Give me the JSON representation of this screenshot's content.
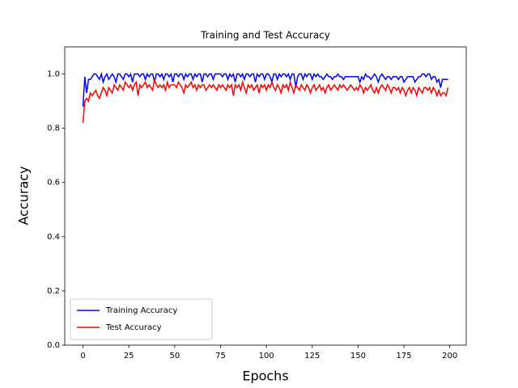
{
  "chart_data": {
    "type": "line",
    "title": "Training and Test Accuracy",
    "xlabel": "Epochs",
    "ylabel": "Accuracy",
    "x": [
      0,
      1,
      2,
      3,
      4,
      5,
      6,
      7,
      8,
      9,
      10,
      11,
      12,
      13,
      14,
      15,
      16,
      17,
      18,
      19,
      20,
      21,
      22,
      23,
      24,
      25,
      26,
      27,
      28,
      29,
      30,
      31,
      32,
      33,
      34,
      35,
      36,
      37,
      38,
      39,
      40,
      41,
      42,
      43,
      44,
      45,
      46,
      47,
      48,
      49,
      50,
      51,
      52,
      53,
      54,
      55,
      56,
      57,
      58,
      59,
      60,
      61,
      62,
      63,
      64,
      65,
      66,
      67,
      68,
      69,
      70,
      71,
      72,
      73,
      74,
      75,
      76,
      77,
      78,
      79,
      80,
      81,
      82,
      83,
      84,
      85,
      86,
      87,
      88,
      89,
      90,
      91,
      92,
      93,
      94,
      95,
      96,
      97,
      98,
      99,
      100,
      101,
      102,
      103,
      104,
      105,
      106,
      107,
      108,
      109,
      110,
      111,
      112,
      113,
      114,
      115,
      116,
      117,
      118,
      119,
      120,
      121,
      122,
      123,
      124,
      125,
      126,
      127,
      128,
      129,
      130,
      131,
      132,
      133,
      134,
      135,
      136,
      137,
      138,
      139,
      140,
      141,
      142,
      143,
      144,
      145,
      146,
      147,
      148,
      149,
      150,
      151,
      152,
      153,
      154,
      155,
      156,
      157,
      158,
      159,
      160,
      161,
      162,
      163,
      164,
      165,
      166,
      167,
      168,
      169,
      170,
      171,
      172,
      173,
      174,
      175,
      176,
      177,
      178,
      179,
      180,
      181,
      182,
      183,
      184,
      185,
      186,
      187,
      188,
      189,
      190,
      191,
      192,
      193,
      194,
      195,
      196,
      197,
      198,
      199
    ],
    "series": [
      {
        "name": "Training Accuracy",
        "color": "#0000ff",
        "values": [
          0.88,
          0.99,
          0.93,
          0.98,
          0.98,
          0.99,
          1.0,
          1.0,
          0.99,
          0.98,
          1.0,
          0.97,
          0.99,
          1.0,
          0.98,
          0.99,
          1.0,
          0.99,
          0.97,
          1.0,
          1.0,
          0.99,
          0.98,
          1.0,
          1.0,
          0.99,
          1.0,
          0.97,
          1.0,
          1.0,
          1.0,
          0.99,
          1.0,
          1.0,
          0.98,
          1.0,
          0.99,
          1.0,
          1.0,
          0.97,
          1.0,
          1.0,
          0.99,
          1.0,
          0.98,
          1.0,
          1.0,
          0.99,
          1.0,
          0.97,
          1.0,
          1.0,
          0.99,
          1.0,
          1.0,
          0.98,
          1.0,
          0.99,
          1.0,
          1.0,
          0.98,
          1.0,
          0.99,
          1.0,
          1.0,
          0.97,
          1.0,
          1.0,
          0.99,
          1.0,
          1.0,
          0.98,
          1.0,
          1.0,
          1.0,
          1.0,
          0.99,
          1.0,
          1.0,
          0.98,
          1.0,
          0.99,
          1.0,
          0.97,
          1.0,
          1.0,
          0.99,
          1.0,
          0.98,
          1.0,
          1.0,
          0.99,
          1.0,
          1.0,
          0.97,
          1.0,
          0.99,
          1.0,
          1.0,
          0.98,
          1.0,
          1.0,
          0.99,
          0.97,
          1.0,
          1.0,
          0.98,
          1.0,
          0.99,
          1.0,
          1.0,
          0.99,
          1.0,
          0.98,
          1.0,
          1.0,
          0.95,
          0.99,
          1.0,
          1.0,
          0.98,
          1.0,
          0.99,
          1.0,
          1.0,
          0.98,
          1.0,
          0.99,
          1.0,
          0.99,
          0.99,
          0.98,
          0.99,
          1.0,
          0.99,
          0.99,
          0.98,
          0.99,
          0.99,
          1.0,
          0.99,
          0.99,
          0.98,
          0.99,
          0.99,
          0.99,
          0.99,
          0.99,
          0.99,
          0.99,
          0.99,
          0.97,
          0.99,
          0.98,
          1.0,
          0.99,
          0.99,
          0.98,
          0.99,
          1.0,
          0.99,
          0.97,
          0.99,
          1.0,
          0.99,
          0.98,
          0.99,
          0.99,
          0.98,
          0.99,
          0.99,
          0.99,
          0.98,
          0.99,
          0.99,
          0.97,
          0.98,
          0.99,
          0.99,
          0.99,
          0.99,
          0.97,
          0.98,
          0.99,
          0.99,
          1.0,
          1.0,
          0.99,
          1.0,
          1.0,
          0.98,
          0.99,
          0.99,
          0.97,
          0.98,
          0.95,
          0.98,
          0.98,
          0.98,
          0.98
        ]
      },
      {
        "name": "Test Accuracy",
        "color": "#ff0000",
        "values": [
          0.82,
          0.9,
          0.91,
          0.9,
          0.93,
          0.92,
          0.93,
          0.94,
          0.92,
          0.91,
          0.93,
          0.95,
          0.94,
          0.92,
          0.95,
          0.94,
          0.93,
          0.96,
          0.95,
          0.94,
          0.96,
          0.95,
          0.94,
          0.97,
          0.96,
          0.95,
          0.96,
          0.94,
          0.96,
          0.97,
          0.92,
          0.96,
          0.95,
          0.96,
          0.97,
          0.95,
          0.96,
          0.95,
          0.94,
          0.98,
          0.96,
          0.95,
          0.96,
          0.95,
          0.96,
          0.94,
          0.97,
          0.95,
          0.96,
          0.96,
          0.96,
          0.95,
          0.97,
          0.96,
          0.95,
          0.93,
          0.96,
          0.95,
          0.96,
          0.97,
          0.95,
          0.96,
          0.94,
          0.96,
          0.95,
          0.96,
          0.96,
          0.94,
          0.95,
          0.96,
          0.95,
          0.96,
          0.95,
          0.94,
          0.96,
          0.95,
          0.96,
          0.95,
          0.94,
          0.96,
          0.95,
          0.96,
          0.92,
          0.96,
          0.95,
          0.96,
          0.94,
          0.97,
          0.95,
          0.93,
          0.96,
          0.95,
          0.96,
          0.94,
          0.95,
          0.96,
          0.93,
          0.96,
          0.95,
          0.96,
          0.94,
          0.96,
          0.95,
          0.97,
          0.95,
          0.94,
          0.96,
          0.95,
          0.93,
          0.96,
          0.95,
          0.96,
          0.94,
          0.97,
          0.95,
          0.93,
          0.96,
          0.95,
          0.94,
          0.96,
          0.95,
          0.94,
          0.96,
          0.95,
          0.93,
          0.95,
          0.96,
          0.94,
          0.95,
          0.96,
          0.94,
          0.95,
          0.93,
          0.95,
          0.96,
          0.94,
          0.95,
          0.96,
          0.95,
          0.94,
          0.96,
          0.95,
          0.96,
          0.95,
          0.94,
          0.95,
          0.96,
          0.95,
          0.94,
          0.95,
          0.94,
          0.96,
          0.95,
          0.93,
          0.95,
          0.94,
          0.95,
          0.96,
          0.94,
          0.93,
          0.95,
          0.93,
          0.95,
          0.96,
          0.95,
          0.94,
          0.96,
          0.95,
          0.93,
          0.95,
          0.95,
          0.94,
          0.95,
          0.93,
          0.95,
          0.94,
          0.92,
          0.94,
          0.95,
          0.93,
          0.95,
          0.94,
          0.92,
          0.95,
          0.94,
          0.93,
          0.95,
          0.95,
          0.94,
          0.95,
          0.93,
          0.95,
          0.94,
          0.92,
          0.94,
          0.92,
          0.93,
          0.93,
          0.92,
          0.95
        ]
      }
    ],
    "xlim": [
      -9.95,
      208.95
    ],
    "xticks": [
      0,
      25,
      50,
      75,
      100,
      125,
      150,
      175,
      200
    ],
    "ylim": [
      0,
      1.1
    ],
    "yticks": [
      {
        "value": 0,
        "label": "0.0"
      },
      {
        "value": 0.2,
        "label": "0.2"
      },
      {
        "value": 0.4,
        "label": "0.4"
      },
      {
        "value": 0.6,
        "label": "0.6"
      },
      {
        "value": 0.8,
        "label": "0.8"
      },
      {
        "value": 1.0,
        "label": "1.0"
      }
    ],
    "legend": "lower left",
    "grid": false
  }
}
